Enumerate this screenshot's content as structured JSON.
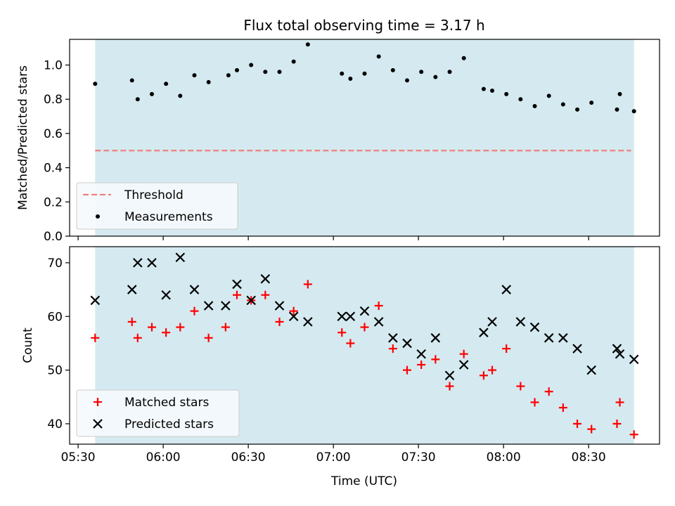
{
  "title": "Flux total observing time = 3.17 h",
  "xlabel": "Time (UTC)",
  "x_ticks": [
    "05:30",
    "06:00",
    "06:30",
    "07:00",
    "07:30",
    "08:00",
    "08:30"
  ],
  "colors": {
    "band": "#d4eaf0",
    "threshold": "#f08080",
    "matched": "#ff0000",
    "predicted": "#000000"
  },
  "chart_data": [
    {
      "type": "scatter",
      "panel": "top",
      "ylabel": "Matched/Predicted stars",
      "ylim": [
        0,
        1.15
      ],
      "xlim": [
        "05:27",
        "08:55"
      ],
      "y_ticks": [
        "0.0",
        "0.2",
        "0.4",
        "0.6",
        "0.8",
        "1.0"
      ],
      "shaded_span": [
        "05:36",
        "08:46"
      ],
      "grid": false,
      "legend": "bottom-left",
      "threshold": {
        "name": "Threshold",
        "value": 0.5,
        "x_range": [
          "05:36",
          "08:45"
        ]
      },
      "series": [
        {
          "name": "Measurements",
          "marker": "dot",
          "x": [
            "05:36",
            "05:49",
            "05:51",
            "05:56",
            "06:01",
            "06:06",
            "06:11",
            "06:16",
            "06:23",
            "06:26",
            "06:31",
            "06:36",
            "06:41",
            "06:46",
            "06:51",
            "07:03",
            "07:06",
            "07:11",
            "07:16",
            "07:21",
            "07:26",
            "07:31",
            "07:36",
            "07:41",
            "07:46",
            "07:53",
            "07:56",
            "08:01",
            "08:06",
            "08:11",
            "08:16",
            "08:21",
            "08:26",
            "08:31",
            "08:40",
            "08:41",
            "08:46"
          ],
          "values": [
            0.89,
            0.91,
            0.8,
            0.83,
            0.89,
            0.82,
            0.94,
            0.9,
            0.94,
            0.97,
            1.0,
            0.96,
            0.96,
            1.02,
            1.12,
            0.95,
            0.92,
            0.95,
            1.05,
            0.97,
            0.91,
            0.96,
            0.93,
            0.96,
            1.04,
            0.86,
            0.85,
            0.83,
            0.8,
            0.76,
            0.82,
            0.77,
            0.74,
            0.78,
            0.74,
            0.83,
            0.73
          ]
        }
      ]
    },
    {
      "type": "scatter",
      "panel": "bottom",
      "ylabel": "Count",
      "ylim": [
        36.2,
        73
      ],
      "xlim": [
        "05:27",
        "08:55"
      ],
      "y_ticks": [
        "40",
        "50",
        "60",
        "70"
      ],
      "shaded_span": [
        "05:36",
        "08:46"
      ],
      "grid": false,
      "legend": "bottom-left",
      "series": [
        {
          "name": "Matched stars",
          "marker": "plus",
          "x": [
            "05:36",
            "05:49",
            "05:51",
            "05:56",
            "06:01",
            "06:06",
            "06:11",
            "06:16",
            "06:22",
            "06:26",
            "06:31",
            "06:36",
            "06:41",
            "06:46",
            "06:51",
            "07:03",
            "07:06",
            "07:11",
            "07:16",
            "07:21",
            "07:26",
            "07:31",
            "07:36",
            "07:41",
            "07:46",
            "07:53",
            "07:56",
            "08:01",
            "08:06",
            "08:11",
            "08:16",
            "08:21",
            "08:26",
            "08:31",
            "08:40",
            "08:41",
            "08:46"
          ],
          "values": [
            56,
            59,
            56,
            58,
            57,
            58,
            61,
            56,
            58,
            64,
            63,
            64,
            59,
            61,
            66,
            57,
            55,
            58,
            62,
            54,
            50,
            51,
            52,
            47,
            53,
            49,
            50,
            54,
            47,
            44,
            46,
            43,
            40,
            39,
            40,
            44,
            38
          ]
        },
        {
          "name": "Predicted stars",
          "marker": "x",
          "x": [
            "05:36",
            "05:49",
            "05:51",
            "05:56",
            "06:01",
            "06:06",
            "06:11",
            "06:16",
            "06:22",
            "06:26",
            "06:31",
            "06:36",
            "06:41",
            "06:46",
            "06:51",
            "07:03",
            "07:06",
            "07:11",
            "07:16",
            "07:21",
            "07:26",
            "07:31",
            "07:36",
            "07:41",
            "07:46",
            "07:53",
            "07:56",
            "08:01",
            "08:06",
            "08:11",
            "08:16",
            "08:21",
            "08:26",
            "08:31",
            "08:40",
            "08:41",
            "08:46"
          ],
          "values": [
            63,
            65,
            70,
            70,
            64,
            71,
            65,
            62,
            62,
            66,
            63,
            67,
            62,
            60,
            59,
            60,
            60,
            61,
            59,
            56,
            55,
            53,
            56,
            49,
            51,
            57,
            59,
            65,
            59,
            58,
            56,
            56,
            54,
            50,
            54,
            53,
            52
          ]
        }
      ]
    }
  ]
}
